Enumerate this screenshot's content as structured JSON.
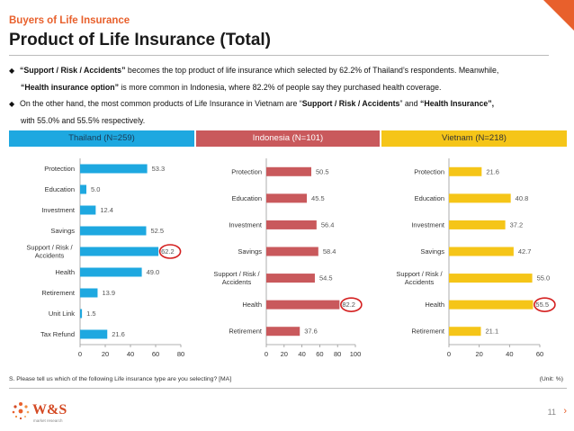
{
  "header": {
    "kicker": "Buyers of Life Insurance",
    "title": "Product of Life Insurance (Total)"
  },
  "bullets": {
    "b1_quote": "“Support / Risk / Accidents”",
    "b1_rest": " becomes the top product of life insurance which selected by 62.2% of Thailand’s respondents. Meanwhile,",
    "b1_quote2": "“Health insurance option”",
    "b1_rest2": " is more common in Indonesia, where 82.2% of people say they purchased health coverage.",
    "b2_start": "On the other hand, the most common products of Life Insurance in Vietnam are “",
    "b2_q1": "Support / Risk / Accidents",
    "b2_mid": "” and ",
    "b2_q2": "“Health Insurance”,",
    "b2_line2": "with 55.0% and 55.5% respectively."
  },
  "colors": {
    "accent": "#e8602c",
    "thailand": "#1ea8e0",
    "indonesia": "#c9595c",
    "vietnam": "#f5c518",
    "highlight_circle": "#d42020"
  },
  "chart_data": [
    {
      "type": "bar",
      "orientation": "horizontal",
      "title": "Thailand (N=259)",
      "categories": [
        "Protection",
        "Education",
        "Investment",
        "Savings",
        "Support / Risk / Accidents",
        "Health",
        "Retirement",
        "Unit Link",
        "Tax Refund"
      ],
      "values": [
        53.3,
        5.0,
        12.4,
        52.5,
        62.2,
        49.0,
        13.9,
        1.5,
        21.6
      ],
      "value_labels": [
        "53.3",
        "5.0",
        "12.4",
        "52.5",
        "62.2",
        "49.0",
        "13.9",
        "1.5",
        "21.6"
      ],
      "xlim": [
        0,
        80
      ],
      "xticks": [
        "0",
        "20",
        "40",
        "60",
        "80"
      ],
      "highlight": "Support / Risk / Accidents",
      "color": "#1ea8e0"
    },
    {
      "type": "bar",
      "orientation": "horizontal",
      "title": "Indonesia (N=101)",
      "categories": [
        "Protection",
        "Education",
        "Investment",
        "Savings",
        "Support / Risk / Accidents",
        "Health",
        "Retirement"
      ],
      "values": [
        50.5,
        45.5,
        56.4,
        58.4,
        54.5,
        82.2,
        37.6
      ],
      "value_labels": [
        "50.5",
        "45.5",
        "56.4",
        "58.4",
        "54.5",
        "82.2",
        "37.6"
      ],
      "xlim": [
        0,
        100
      ],
      "xticks": [
        "0",
        "20",
        "40",
        "60",
        "80",
        "100"
      ],
      "highlight": "Health",
      "color": "#c9595c"
    },
    {
      "type": "bar",
      "orientation": "horizontal",
      "title": "Vietnam (N=218)",
      "categories": [
        "Protection",
        "Education",
        "Investment",
        "Savings",
        "Support / Risk / Accidents",
        "Health",
        "Retirement"
      ],
      "values": [
        21.6,
        40.8,
        37.2,
        42.7,
        55.0,
        55.5,
        21.1
      ],
      "value_labels": [
        "21.6",
        "40.8",
        "37.2",
        "42.7",
        "55.0",
        "55.5",
        "21.1"
      ],
      "xlim": [
        0,
        60
      ],
      "xticks": [
        "0",
        "20",
        "40",
        "60"
      ],
      "highlight": "Health",
      "color": "#f5c518"
    }
  ],
  "footer": {
    "footnote": "S. Please tell us which of the following Life insurance type are you selecting? [MA]",
    "unit": "(Unit: %)",
    "logo_text": "W&S",
    "logo_sub": "market research",
    "page_number": "11"
  }
}
